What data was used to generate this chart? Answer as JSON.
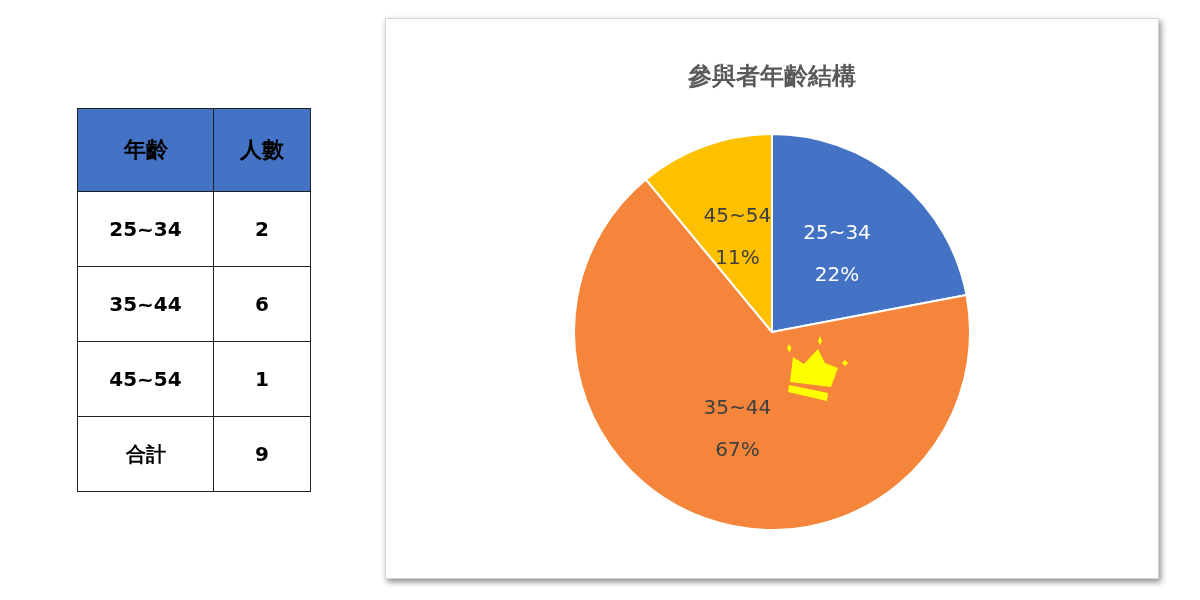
{
  "chart_data": [
    {
      "type": "other",
      "categories": [
        "25~34",
        "35~44",
        "45~54",
        "合計"
      ],
      "values": [
        2,
        6,
        1,
        9
      ],
      "data_labels": true,
      "annotations": [
        "年齡",
        "人數"
      ]
    },
    {
      "type": "pie",
      "title": "參與者年齡結構",
      "categories": [
        "25~34",
        "35~44",
        "45~54"
      ],
      "values": [
        22,
        67,
        11
      ],
      "colors": [
        "#4472c4",
        "#f4853a",
        "#ffc000"
      ],
      "value_labels": [
        "22%",
        "67%",
        "11%"
      ]
    }
  ]
}
